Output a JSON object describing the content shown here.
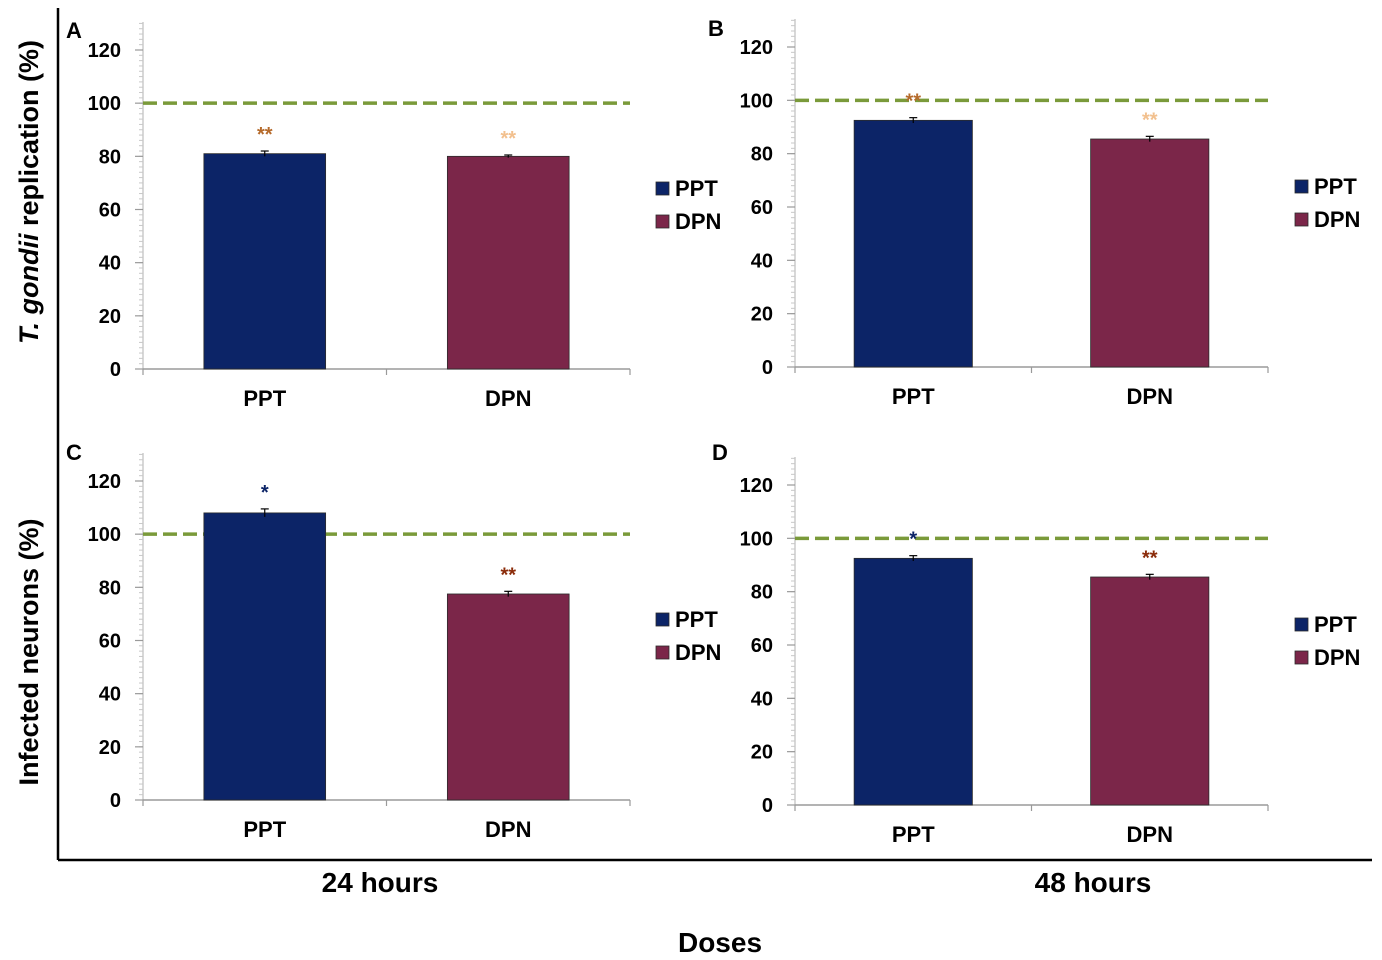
{
  "figure": {
    "ylabel_top_prefix": "T. gondii",
    "ylabel_top_suffix": " replication (%)",
    "ylabel_bottom": "Infected neurons (%)",
    "col_labels": [
      "24 hours",
      "48 hours"
    ],
    "xlabel": "Doses"
  },
  "colors": {
    "PPT": "#0c2467",
    "DPN": "#7b2649",
    "reference_line": "#7a9a3a"
  },
  "chart_data": [
    {
      "panel": "A",
      "type": "bar",
      "categories": [
        "PPT",
        "DPN"
      ],
      "values": [
        81,
        80
      ],
      "errors": [
        1,
        0.5
      ],
      "significance": [
        "**",
        "**"
      ],
      "significance_colors": [
        "#b56a2b",
        "#f2c08e"
      ],
      "legend": [
        "PPT",
        "DPN"
      ],
      "reference_line": 100,
      "ylim": [
        0,
        120
      ],
      "yticks": [
        0,
        20,
        40,
        60,
        80,
        100,
        120
      ]
    },
    {
      "panel": "B",
      "type": "bar",
      "categories": [
        "PPT",
        "DPN"
      ],
      "values": [
        92.5,
        85.5
      ],
      "errors": [
        1,
        1
      ],
      "significance": [
        "**",
        "**"
      ],
      "significance_colors": [
        "#b56a2b",
        "#f2c08e"
      ],
      "legend": [
        "PPT",
        "DPN"
      ],
      "reference_line": 100,
      "ylim": [
        0,
        120
      ],
      "yticks": [
        0,
        20,
        40,
        60,
        80,
        100,
        120
      ]
    },
    {
      "panel": "C",
      "type": "bar",
      "categories": [
        "PPT",
        "DPN"
      ],
      "values": [
        108,
        77.5
      ],
      "errors": [
        1.5,
        1
      ],
      "significance": [
        "*",
        "**"
      ],
      "significance_colors": [
        "#0c2467",
        "#8b2c0a"
      ],
      "legend": [
        "PPT",
        "DPN"
      ],
      "reference_line": 100,
      "ylim": [
        0,
        120
      ],
      "yticks": [
        0,
        20,
        40,
        60,
        80,
        100,
        120
      ]
    },
    {
      "panel": "D",
      "type": "bar",
      "categories": [
        "PPT",
        "DPN"
      ],
      "values": [
        92.5,
        85.5
      ],
      "errors": [
        1,
        1
      ],
      "significance": [
        "*",
        "**"
      ],
      "significance_colors": [
        "#0c2467",
        "#8b2c0a"
      ],
      "legend": [
        "PPT",
        "DPN"
      ],
      "reference_line": 100,
      "ylim": [
        0,
        120
      ],
      "yticks": [
        0,
        20,
        40,
        60,
        80,
        100,
        120
      ]
    }
  ]
}
